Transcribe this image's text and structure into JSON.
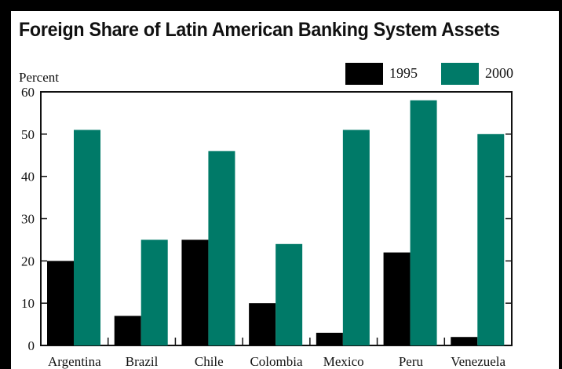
{
  "chart_data": {
    "type": "bar",
    "title": "Foreign Share of Latin American Banking System Assets",
    "ylabel": "Percent",
    "xlabel": "",
    "categories": [
      "Argentina",
      "Brazil",
      "Chile",
      "Colombia",
      "Mexico",
      "Peru",
      "Venezuela"
    ],
    "series": [
      {
        "name": "1995",
        "color": "#000000",
        "values": [
          20,
          7,
          25,
          10,
          3,
          22,
          2
        ]
      },
      {
        "name": "2000",
        "color": "#007A68",
        "values": [
          51,
          25,
          46,
          24,
          51,
          58,
          50
        ]
      }
    ],
    "ylim": [
      0,
      60
    ],
    "yticks": [
      0,
      10,
      20,
      30,
      40,
      50,
      60
    ],
    "grid": false,
    "legend_position": "top-right"
  }
}
